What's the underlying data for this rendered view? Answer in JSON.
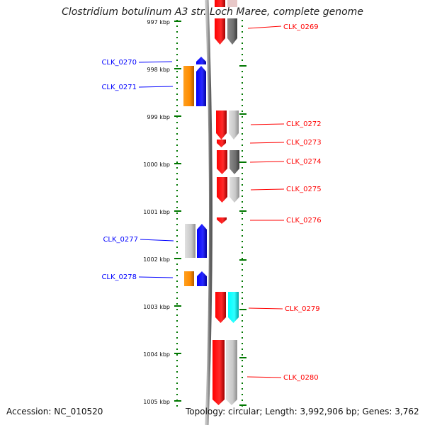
{
  "title": "Clostridium botulinum A3 str. Loch Maree, complete genome",
  "footer": {
    "accession": "Accession: NC_010520",
    "summary": "Topology: circular; Length: 3,992,906 bp; Genes: 3,762"
  },
  "ticks": [
    "997 kbp",
    "998 kbp",
    "999 kbp",
    "1000 kbp",
    "1001 kbp",
    "1002 kbp",
    "1003 kbp",
    "1004 kbp",
    "1005 kbp"
  ],
  "genes_left": [
    "CLK_0270",
    "CLK_0271",
    "CLK_0277",
    "CLK_0278"
  ],
  "genes_right": [
    "CLK_0269",
    "CLK_0272",
    "CLK_0273",
    "CLK_0274",
    "CLK_0275",
    "CLK_0276",
    "CLK_0279",
    "CLK_0280"
  ],
  "colors": {
    "forward": "#0000ff",
    "reverse": "#ff0000",
    "ruler": "#007700",
    "orange": "#ff8c00",
    "cyan": "#00ffff",
    "gray_light": "#c8c8c8",
    "gray_dark": "#6e6e6e",
    "backbone": "#8a8a8a"
  }
}
